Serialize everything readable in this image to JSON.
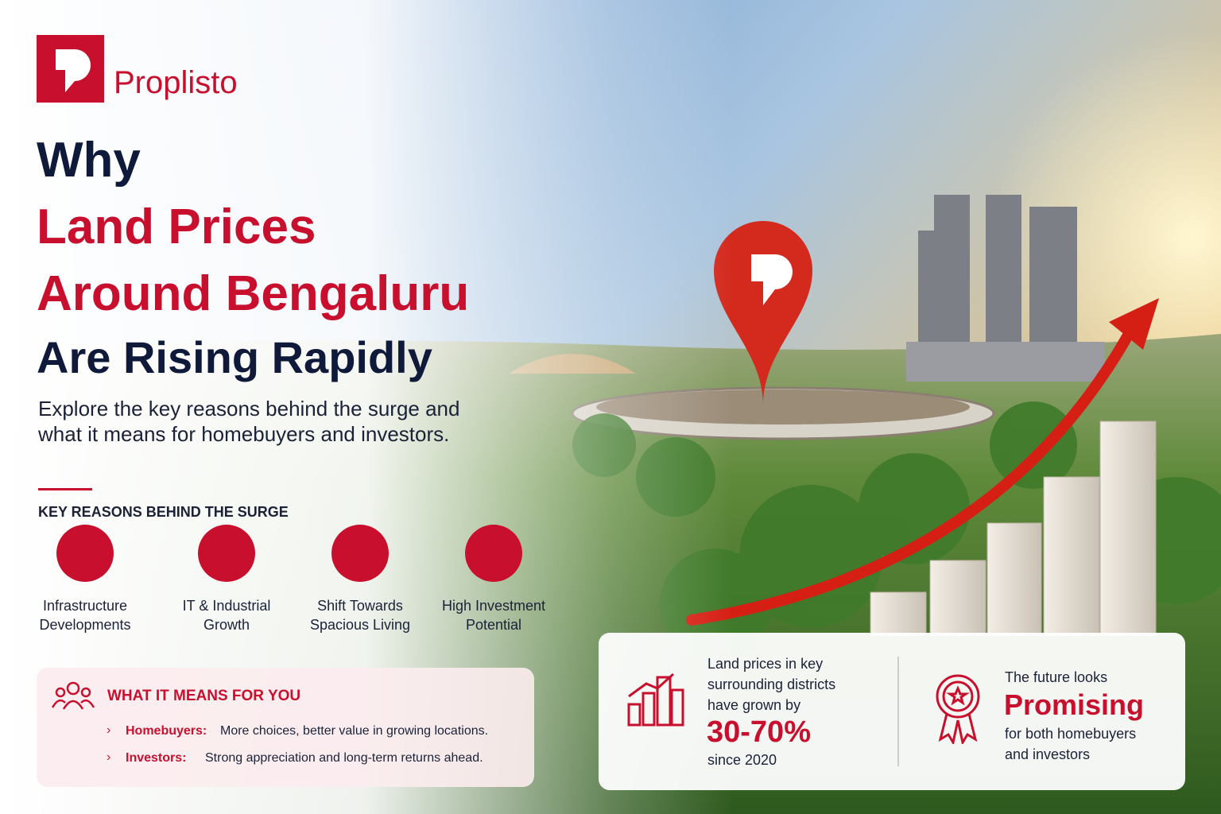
{
  "brand": "Proplisto",
  "title": {
    "line1": "Why",
    "line2": "Land Prices",
    "line3": "Around Bengaluru",
    "line4": "Are Rising Rapidly"
  },
  "subtitle": "Explore the key reasons behind the surge and what it means for homebuyers and investors.",
  "reasons": {
    "heading": "KEY REASONS BEHIND THE SURGE",
    "items": [
      "Infrastructure Developments",
      "IT & Industrial Growth",
      "Shift Towards Spacious Living",
      "High Investment Potential"
    ]
  },
  "meaning": {
    "heading": "WHAT IT MEANS FOR YOU",
    "items": [
      {
        "label": "Homebuyers:",
        "text": "More choices, better value in growing locations."
      },
      {
        "label": "Investors:",
        "text": "Strong appreciation and long-term returns ahead."
      }
    ]
  },
  "stats": {
    "text": "Land prices in key surrounding districts have grown by",
    "figure": "30-70%",
    "since": "since 2020"
  },
  "future": {
    "lead": "The future looks",
    "highlight": "Promising",
    "tail": "for both homebuyers and investors"
  }
}
